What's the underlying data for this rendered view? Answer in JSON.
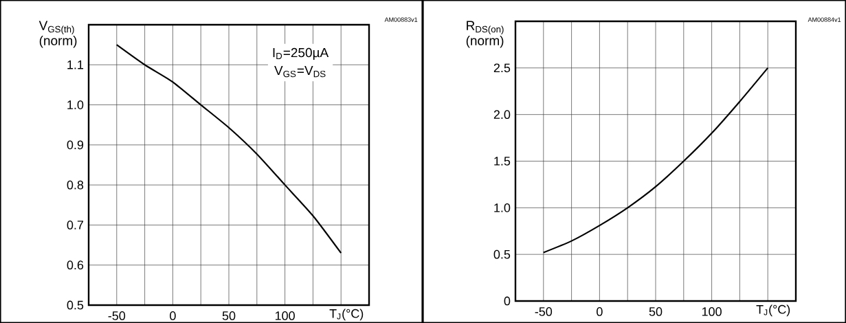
{
  "chart_data": [
    {
      "type": "line",
      "xlabel": "T$_{J}$(°C)",
      "ylabel": "V$_{GS(th)}$ (norm)",
      "annotations": [
        "AM00883v1",
        "I$_{D}$=250µA",
        "V$_{GS}$=V$_{DS}$"
      ],
      "xlim": [
        -75,
        175
      ],
      "ylim": [
        0.5,
        1.2
      ],
      "xticks": [
        -50,
        {
          "value": -25,
          "label": null
        },
        0,
        {
          "value": 25,
          "label": null
        },
        50,
        {
          "value": 75,
          "label": null
        },
        100,
        {
          "value": 125,
          "label": null
        },
        {
          "value": 150,
          "label": null
        }
      ],
      "yticks": [
        0.5,
        0.6,
        0.7,
        0.8,
        0.9,
        {
          "value": 1.0,
          "label": "1.0"
        },
        1.1,
        {
          "value": 1.2,
          "label": null
        }
      ],
      "grid": true,
      "x": [
        -50,
        -25,
        0,
        25,
        50,
        75,
        100,
        125,
        150
      ],
      "series": [
        {
          "color": "#000000",
          "values": [
            1.15,
            1.1,
            1.057,
            1.0,
            0.943,
            0.877,
            0.8,
            0.723,
            0.63
          ]
        }
      ]
    },
    {
      "type": "line",
      "xlabel": "T$_{J}$(°C)",
      "ylabel": "R$_{DS(on)}$ (norm)",
      "annotations": [
        "AM00884v1"
      ],
      "xlim": [
        -75,
        175
      ],
      "ylim": [
        0,
        3.0
      ],
      "xticks": [
        -50,
        {
          "value": -25,
          "label": null
        },
        0,
        {
          "value": 25,
          "label": null
        },
        50,
        {
          "value": 75,
          "label": null
        },
        100,
        {
          "value": 125,
          "label": null
        },
        {
          "value": 150,
          "label": null
        }
      ],
      "yticks": [
        0,
        0.5,
        {
          "value": 1.0,
          "label": "1.0"
        },
        1.5,
        {
          "value": 2.0,
          "label": "2.0"
        },
        2.5,
        {
          "value": 3.0,
          "label": null
        }
      ],
      "grid": true,
      "x": [
        -50,
        -25,
        0,
        25,
        50,
        75,
        100,
        125,
        150
      ],
      "series": [
        {
          "color": "#000000",
          "values": [
            0.52,
            0.644,
            0.81,
            1.0,
            1.226,
            1.5,
            1.8,
            2.14,
            2.5
          ]
        }
      ]
    }
  ]
}
